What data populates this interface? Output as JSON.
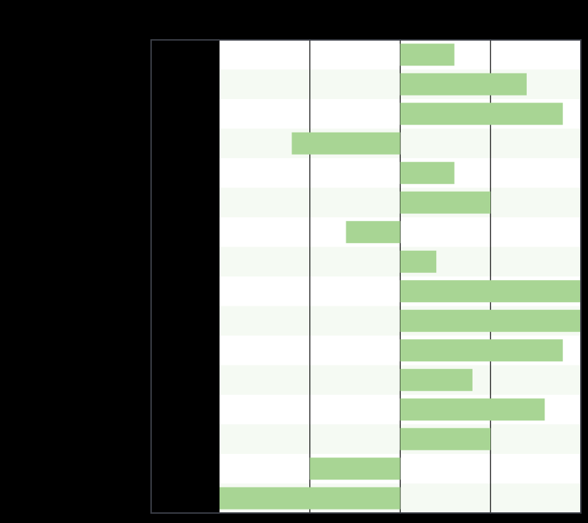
{
  "chart_data": {
    "type": "bar",
    "orientation": "horizontal",
    "title": "",
    "xlabel": "",
    "ylabel": "",
    "xlim": [
      -2,
      2
    ],
    "grid": true,
    "legend": "none",
    "categories": [
      "",
      "",
      "",
      "",
      "",
      "",
      "",
      "",
      "",
      "",
      "",
      "",
      "",
      "",
      "",
      ""
    ],
    "series": [
      {
        "values": [
          0.6,
          1.4,
          1.8,
          -1.2,
          0.6,
          1.0,
          -0.6,
          0.4,
          2.0,
          2.0,
          1.8,
          0.8,
          1.6,
          1.0,
          -1.0,
          -2.0
        ]
      }
    ]
  },
  "colors": {
    "background": "#000000",
    "plot_background": "#ffffff",
    "band": "#f5faf3",
    "bar": "#a8d594",
    "frame": "#3a3d46",
    "gridline": "#000000"
  }
}
